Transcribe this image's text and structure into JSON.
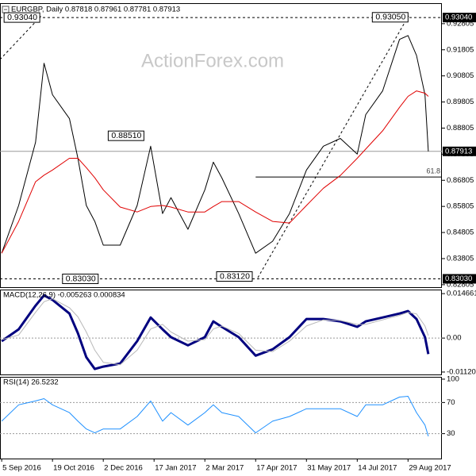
{
  "chart_data": [
    {
      "type": "line",
      "title": "EURGBP, Daily  0.87818 0.87961 0.87781 0.87913",
      "watermark": "ActionForex.com",
      "x": [
        0,
        10,
        20,
        25,
        30,
        40,
        45,
        50,
        55,
        60,
        70,
        80,
        88,
        95,
        100,
        110,
        120,
        125,
        130,
        140,
        150,
        160,
        170,
        180,
        190,
        200,
        210,
        215,
        225,
        235,
        240,
        245,
        250,
        252
      ],
      "xlim": [
        -1,
        260
      ],
      "ylim": [
        0.8271,
        0.9356
      ],
      "yticks": [
        {
          "value": 0.92805,
          "label": "0.92805"
        },
        {
          "value": 0.91805,
          "label": "0.91805"
        },
        {
          "value": 0.90805,
          "label": "0.90805"
        },
        {
          "value": 0.89805,
          "label": "0.89805"
        },
        {
          "value": 0.88805,
          "label": "0.88805"
        },
        {
          "value": 0.87805,
          "label": "0.87805"
        },
        {
          "value": 0.86805,
          "label": "0.86805"
        },
        {
          "value": 0.85805,
          "label": "0.85805"
        },
        {
          "value": 0.84805,
          "label": "0.84805"
        },
        {
          "value": 0.83805,
          "label": "0.83805"
        },
        {
          "value": 0.82805,
          "label": "0.82805"
        }
      ],
      "series": [
        {
          "name": "EURGBP",
          "color": "#000000",
          "width": 1,
          "values": [
            0.8401,
            0.8584,
            0.8826,
            0.9129,
            0.9008,
            0.8917,
            0.8765,
            0.8584,
            0.8523,
            0.8432,
            0.8432,
            0.8584,
            0.8811,
            0.8553,
            0.8614,
            0.8493,
            0.8644,
            0.875,
            0.869,
            0.8553,
            0.8401,
            0.8447,
            0.8553,
            0.872,
            0.8811,
            0.8841,
            0.8781,
            0.8932,
            0.9023,
            0.922,
            0.9235,
            0.9159,
            0.9008,
            0.87913
          ]
        },
        {
          "name": "MA",
          "color": "#e00000",
          "width": 1,
          "values": [
            0.8401,
            0.8523,
            0.8675,
            0.87,
            0.872,
            0.8765,
            0.8765,
            0.8729,
            0.869,
            0.8644,
            0.8578,
            0.8559,
            0.858,
            0.8584,
            0.8578,
            0.8559,
            0.8559,
            0.858,
            0.8599,
            0.8599,
            0.8559,
            0.8523,
            0.8517,
            0.8584,
            0.865,
            0.8699,
            0.8765,
            0.88,
            0.887,
            0.896,
            0.9002,
            0.9023,
            0.9014,
            0.9002
          ]
        }
      ],
      "annotations": [
        {
          "label": "0.93040",
          "value": 0.9304,
          "x": 22.5
        },
        {
          "label": "0.88510",
          "value": 0.8851,
          "x": 84
        },
        {
          "label": "0.83030",
          "value": 0.8303,
          "x": 57
        },
        {
          "label": "0.93050",
          "value": 0.9305,
          "x": 240
        },
        {
          "label": "0.83120",
          "value": 0.8312,
          "x": 148
        }
      ],
      "price_tags": [
        {
          "label": "0.93040",
          "value": 0.9304,
          "style": "dashed"
        },
        {
          "label": "0.87913",
          "value": 0.87913,
          "style": "solid"
        },
        {
          "label": "0.83030",
          "value": 0.8303,
          "style": "dashed"
        }
      ],
      "fib_level": {
        "label": "61.8",
        "value": 0.8693,
        "x": 150
      }
    },
    {
      "type": "line",
      "title": "MACD(12,26,9) -0.005263 0.000834",
      "x": [
        0,
        10,
        20,
        25,
        30,
        40,
        45,
        50,
        55,
        60,
        70,
        80,
        88,
        95,
        100,
        110,
        120,
        125,
        130,
        140,
        150,
        160,
        170,
        180,
        190,
        200,
        210,
        215,
        225,
        235,
        240,
        245,
        250,
        252
      ],
      "xlim": [
        -1,
        260
      ],
      "ylim": [
        -0.012,
        0.016
      ],
      "yticks": [
        0.014661,
        {
          "value": 0,
          "label": "0.00"
        },
        -0.011202
      ],
      "zero_line": true,
      "series": [
        {
          "name": "MACD",
          "color": "#00007f",
          "width": 3,
          "values": [
            -0.001,
            0.0029,
            0.0107,
            0.0141,
            0.0126,
            0.0081,
            0.0016,
            -0.0063,
            -0.0102,
            -0.0094,
            -0.0084,
            -0.001,
            0.0068,
            0.0029,
            0.0003,
            -0.0024,
            0.0003,
            0.0055,
            0.0037,
            0.0003,
            -0.0058,
            -0.0037,
            0.0003,
            0.0063,
            0.0063,
            0.0055,
            0.0037,
            0.0055,
            0.0068,
            0.0081,
            0.0089,
            0.0063,
            0.0003,
            -0.005263
          ]
        },
        {
          "name": "Signal",
          "color": "#b8b8b8",
          "width": 1,
          "values": [
            -0.0005,
            0.001,
            0.0085,
            0.012,
            0.013,
            0.01,
            0.007,
            0.002,
            -0.004,
            -0.008,
            -0.0088,
            -0.004,
            0.003,
            0.0045,
            0.002,
            -0.001,
            -0.0005,
            0.003,
            0.004,
            0.0015,
            -0.004,
            -0.0045,
            -0.001,
            0.004,
            0.006,
            0.0058,
            0.0045,
            0.0045,
            0.006,
            0.0075,
            0.0085,
            0.008,
            0.004,
            0.000834
          ]
        }
      ]
    },
    {
      "type": "line",
      "title": "RSI(14) 26.5232",
      "x": [
        0,
        10,
        20,
        25,
        30,
        40,
        45,
        50,
        55,
        60,
        70,
        80,
        88,
        95,
        100,
        110,
        120,
        125,
        130,
        140,
        150,
        160,
        170,
        180,
        190,
        200,
        210,
        215,
        225,
        235,
        240,
        245,
        250,
        252
      ],
      "xlim": [
        -1,
        260
      ],
      "ylim": [
        -2,
        103
      ],
      "yticks": [
        100,
        70,
        30
      ],
      "levels": [
        70,
        30
      ],
      "xticks": [
        {
          "value": 0,
          "label": "5 Sep 2016"
        },
        {
          "value": 30,
          "label": "19 Oct 2016"
        },
        {
          "value": 60,
          "label": "2 Dec 2016"
        },
        {
          "value": 90,
          "label": "17 Jan 2017"
        },
        {
          "value": 120,
          "label": "2 Mar 2017"
        },
        {
          "value": 150,
          "label": "17 Apr 2017"
        },
        {
          "value": 180,
          "label": "31 May 2017"
        },
        {
          "value": 210,
          "label": "14 Jul 2017"
        },
        {
          "value": 240,
          "label": "29 Aug 2017"
        }
      ],
      "series": [
        {
          "name": "RSI",
          "color": "#1e90ff",
          "width": 1,
          "values": [
            46,
            67,
            72,
            75,
            67,
            57,
            46,
            36,
            31,
            36,
            36,
            52,
            72,
            46,
            57,
            41,
            57,
            67,
            57,
            52,
            31,
            46,
            52,
            62,
            62,
            62,
            52,
            67,
            67,
            77,
            78,
            57,
            41,
            26.5232
          ]
        }
      ]
    }
  ]
}
